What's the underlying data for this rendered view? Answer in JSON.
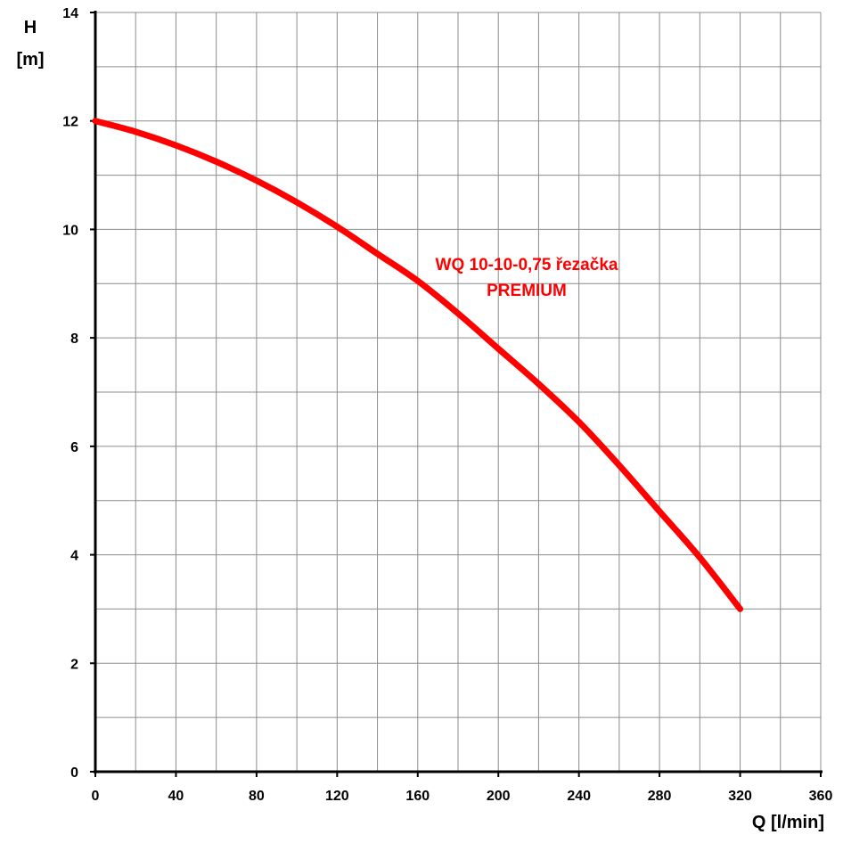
{
  "chart_data": {
    "type": "line",
    "title": "",
    "xlabel": "Q [l/min]",
    "ylabel_line1": "H",
    "ylabel_line2": "[m]",
    "xlim": [
      0,
      360
    ],
    "ylim": [
      0,
      14
    ],
    "x_ticks": [
      0,
      40,
      80,
      120,
      160,
      200,
      240,
      280,
      320,
      360
    ],
    "y_ticks": [
      0,
      2,
      4,
      6,
      8,
      10,
      12,
      14
    ],
    "x_minor_step": 20,
    "y_minor_step": 1,
    "grid": true,
    "series": [
      {
        "name_line1": "WQ 10-10-0,75 řezačka",
        "name_line2": "PREMIUM",
        "color": "#ff0000",
        "x": [
          0,
          20,
          40,
          60,
          80,
          100,
          120,
          140,
          160,
          180,
          200,
          220,
          240,
          260,
          280,
          300,
          320
        ],
        "y": [
          12.0,
          11.8,
          11.55,
          11.25,
          10.9,
          10.5,
          10.05,
          9.55,
          9.05,
          8.45,
          7.8,
          7.15,
          6.45,
          5.65,
          4.8,
          3.95,
          3.0
        ]
      }
    ]
  }
}
